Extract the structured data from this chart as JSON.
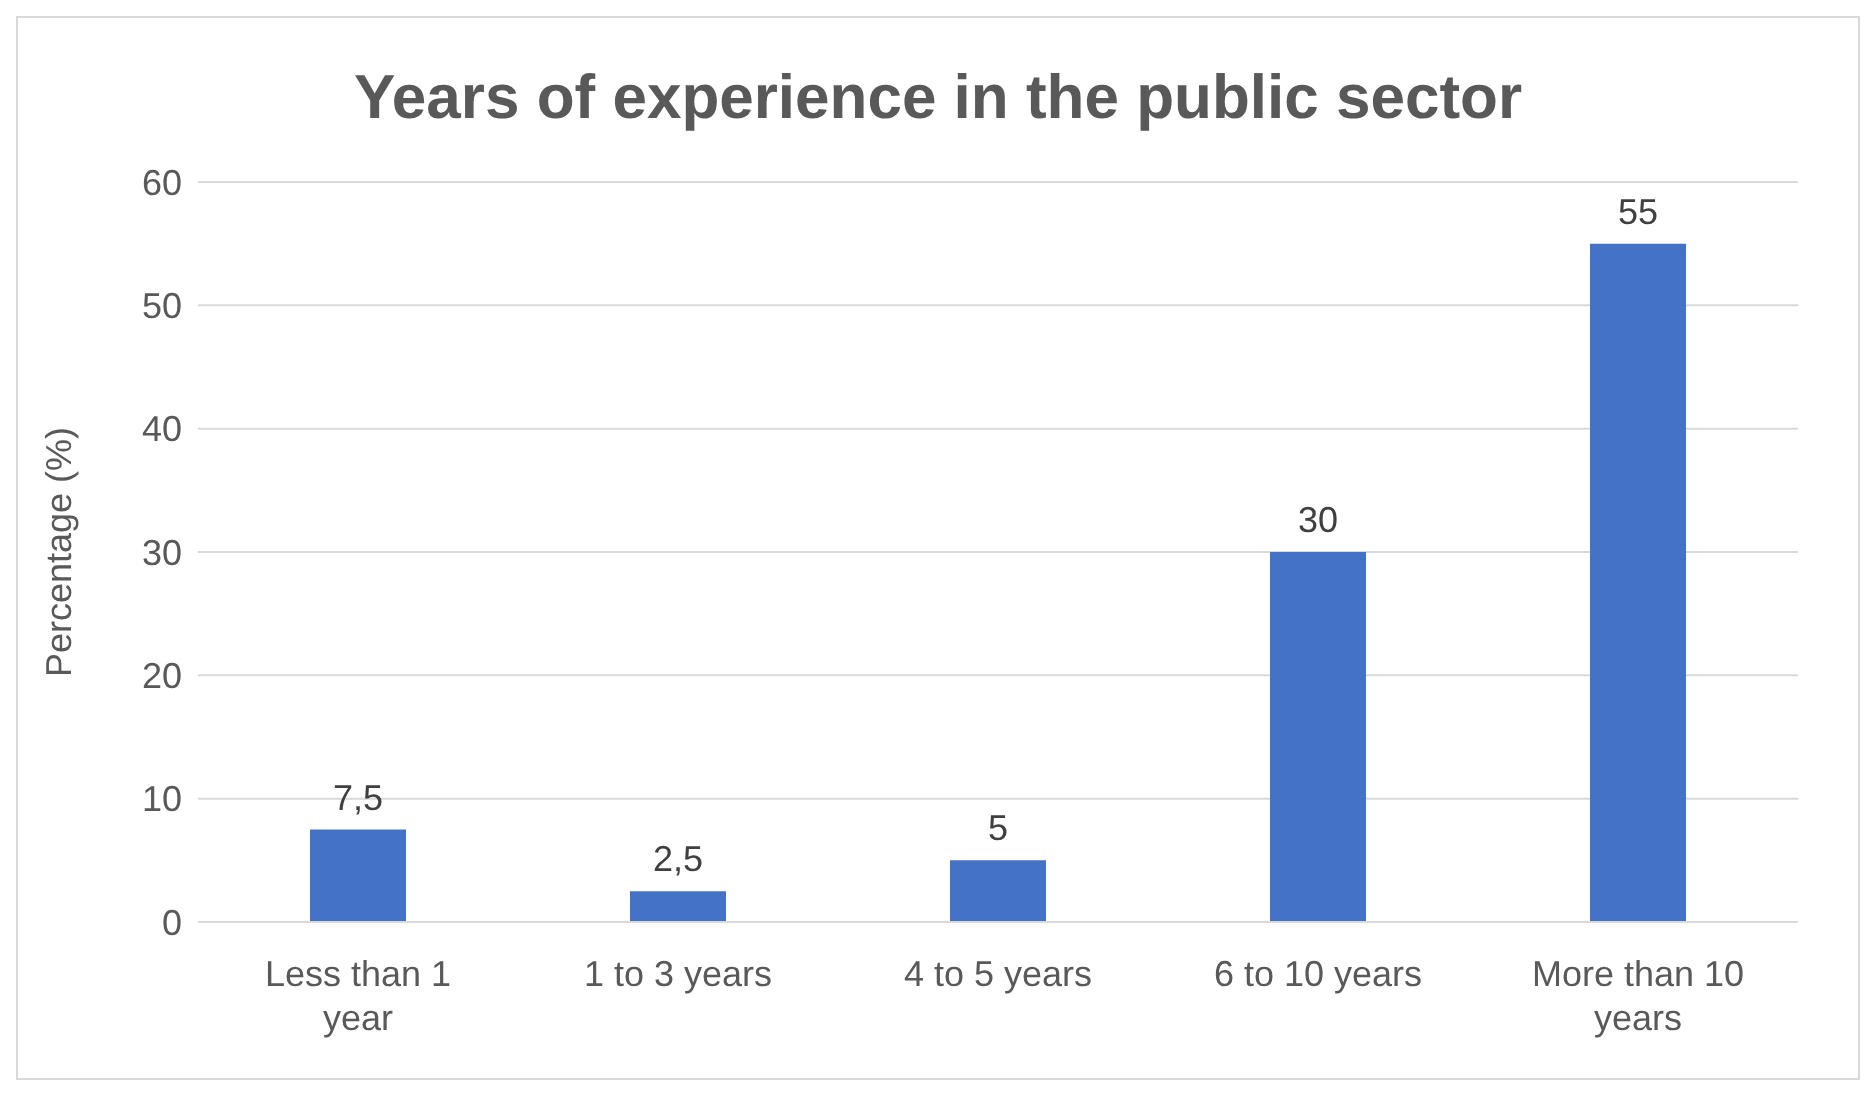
{
  "chart_data": {
    "type": "bar",
    "title": "Years of experience in the public sector",
    "ylabel": "Percentage (%)",
    "categories": [
      "Less than 1 year",
      "1 to 3 years",
      "4 to 5 years",
      "6 to 10 years",
      "More than 10 years"
    ],
    "values": [
      7.5,
      2.5,
      5,
      30,
      55
    ],
    "value_labels": [
      "7,5",
      "2,5",
      "5",
      "30",
      "55"
    ],
    "color": "#4472c4",
    "ylim": [
      0,
      60
    ],
    "yticks": [
      0,
      10,
      20,
      30,
      40,
      50,
      60
    ],
    "grid": "y"
  }
}
